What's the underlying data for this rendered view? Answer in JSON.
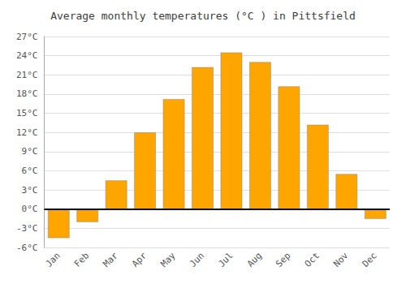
{
  "chart_data": {
    "type": "bar",
    "title": "Average monthly temperatures (°C ) in Pittsfield",
    "categories": [
      "Jan",
      "Feb",
      "Mar",
      "Apr",
      "May",
      "Jun",
      "Jul",
      "Aug",
      "Sep",
      "Oct",
      "Nov",
      "Dec"
    ],
    "values": [
      -4.5,
      -2.0,
      4.5,
      12.0,
      17.2,
      22.2,
      24.5,
      23.0,
      19.2,
      13.2,
      5.5,
      -1.5
    ],
    "color": "#FFA500",
    "ylim": [
      -6,
      27
    ],
    "yticks": [
      {
        "value": -6,
        "label": "-6°C"
      },
      {
        "value": -3,
        "label": "-3°C"
      },
      {
        "value": 0,
        "label": "0°C"
      },
      {
        "value": 3,
        "label": "3°C"
      },
      {
        "value": 6,
        "label": "6°C"
      },
      {
        "value": 9,
        "label": "9°C"
      },
      {
        "value": 12,
        "label": "12°C"
      },
      {
        "value": 15,
        "label": "15°C"
      },
      {
        "value": 18,
        "label": "18°C"
      },
      {
        "value": 21,
        "label": "21°C"
      },
      {
        "value": 24,
        "label": "24°C"
      },
      {
        "value": 27,
        "label": "27°C"
      }
    ],
    "grid": true
  }
}
